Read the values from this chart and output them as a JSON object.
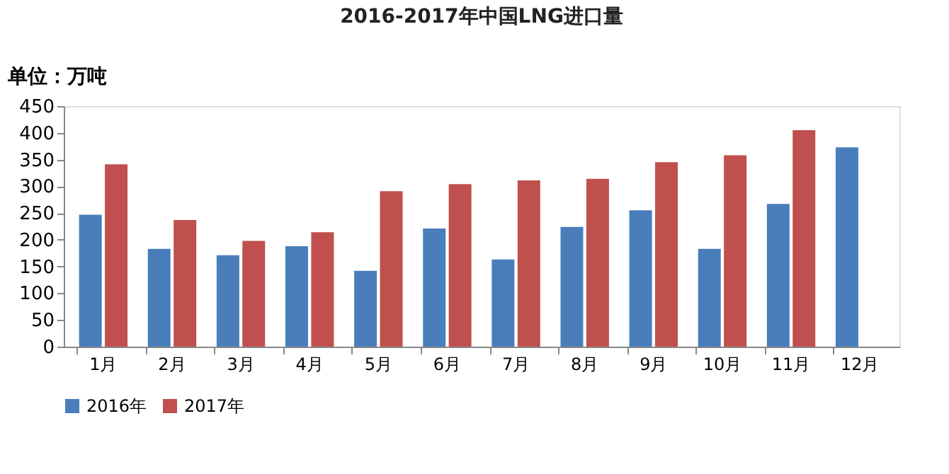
{
  "chart_data": {
    "type": "bar",
    "title": "2016-2017年中国LNG进口量",
    "ylabel": "单位：万吨",
    "categories": [
      "1月",
      "2月",
      "3月",
      "4月",
      "5月",
      "6月",
      "7月",
      "8月",
      "9月",
      "10月",
      "11月",
      "12月"
    ],
    "series": [
      {
        "name": "2016年",
        "color": "#4a7ebb",
        "values": [
          247,
          183,
          171,
          188,
          142,
          221,
          163,
          224,
          255,
          183,
          267,
          373
        ]
      },
      {
        "name": "2017年",
        "color": "#c0504d",
        "values": [
          341,
          237,
          198,
          214,
          291,
          304,
          311,
          314,
          345,
          358,
          405,
          null
        ]
      }
    ],
    "ylim": [
      0,
      450
    ],
    "yticks": [
      0,
      50,
      100,
      150,
      200,
      250,
      300,
      350,
      400,
      450
    ],
    "grid": false,
    "legend": "bottom"
  }
}
